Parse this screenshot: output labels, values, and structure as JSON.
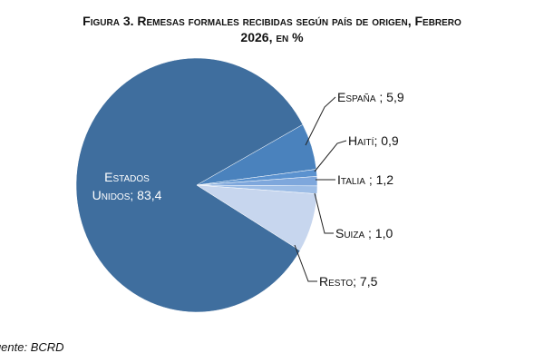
{
  "chart_data": {
    "type": "pie",
    "title": "Figura 3. Remesas formales recibidas según país de origen, Febrero 2026, en %",
    "categories": [
      "Estados Unidos; 83,4",
      "España ; 5,9",
      "Haití; 0,9",
      "Italia ; 1,2",
      "Suiza ; 1,0",
      "Resto; 7,5"
    ],
    "values": [
      83.4,
      5.9,
      0.9,
      1.2,
      1.0,
      7.5
    ],
    "colors": [
      "#3f6e9e",
      "#4a82bd",
      "#5b92cf",
      "#7ea7dc",
      "#9dbde6",
      "#c7d6ee"
    ],
    "source": "Fuente: BCRD"
  }
}
